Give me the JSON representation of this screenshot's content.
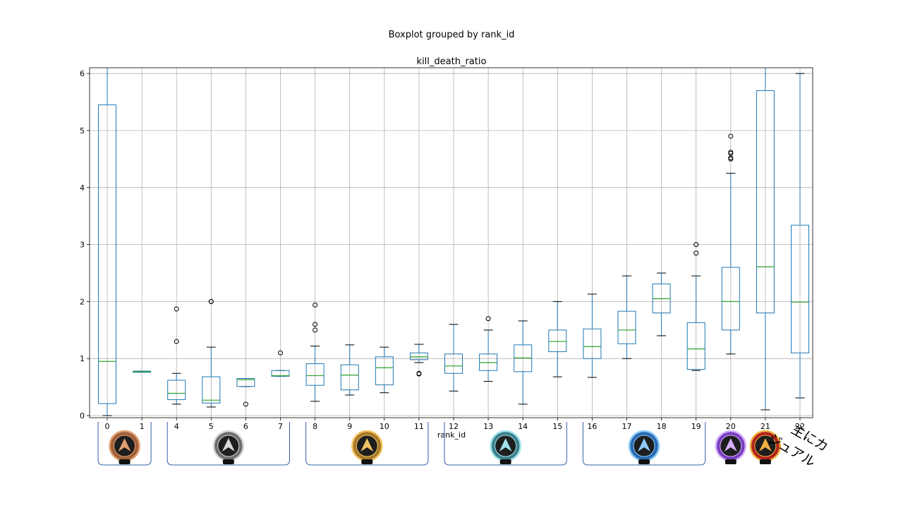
{
  "chart_data": {
    "type": "boxplot",
    "suptitle": "Boxplot grouped by rank_id",
    "title": "kill_death_ratio",
    "xlabel": "rank_id",
    "ylabel": "",
    "ylim": [
      0,
      6.1
    ],
    "yticks": [
      0,
      1,
      2,
      3,
      4,
      5,
      6
    ],
    "grid": true,
    "colors": {
      "box": "#1f77b4",
      "median": "#2ca02c",
      "grid": "#b0b0b0",
      "bracket": "#2f5fa8"
    },
    "categories": [
      "0",
      "1",
      "4",
      "5",
      "6",
      "7",
      "8",
      "9",
      "10",
      "11",
      "12",
      "13",
      "14",
      "15",
      "16",
      "17",
      "18",
      "19",
      "20",
      "21",
      "22"
    ],
    "boxes": [
      {
        "q1": 0.21,
        "median": 0.95,
        "q3": 5.45,
        "whislo": 0.0,
        "whishi": 6.1,
        "fliers": []
      },
      {
        "q1": 0.76,
        "median": 0.77,
        "q3": 0.78,
        "whislo": 0.76,
        "whishi": 0.78,
        "fliers": []
      },
      {
        "q1": 0.28,
        "median": 0.39,
        "q3": 0.62,
        "whislo": 0.2,
        "whishi": 0.74,
        "fliers": [
          1.3,
          1.87
        ]
      },
      {
        "q1": 0.22,
        "median": 0.27,
        "q3": 0.68,
        "whislo": 0.15,
        "whishi": 1.2,
        "fliers": [
          2.0,
          2.0
        ]
      },
      {
        "q1": 0.51,
        "median": 0.63,
        "q3": 0.65,
        "whislo": 0.51,
        "whishi": 0.65,
        "fliers": [
          0.2
        ]
      },
      {
        "q1": 0.69,
        "median": 0.7,
        "q3": 0.79,
        "whislo": 0.69,
        "whishi": 0.79,
        "fliers": [
          1.1
        ]
      },
      {
        "q1": 0.53,
        "median": 0.7,
        "q3": 0.91,
        "whislo": 0.25,
        "whishi": 1.22,
        "fliers": [
          1.5,
          1.6,
          1.94
        ]
      },
      {
        "q1": 0.45,
        "median": 0.71,
        "q3": 0.89,
        "whislo": 0.36,
        "whishi": 1.24,
        "fliers": []
      },
      {
        "q1": 0.54,
        "median": 0.84,
        "q3": 1.03,
        "whislo": 0.4,
        "whishi": 1.2,
        "fliers": []
      },
      {
        "q1": 0.98,
        "median": 1.03,
        "q3": 1.1,
        "whislo": 0.93,
        "whishi": 1.25,
        "fliers": [
          0.73,
          0.74
        ]
      },
      {
        "q1": 0.74,
        "median": 0.87,
        "q3": 1.08,
        "whislo": 0.43,
        "whishi": 1.6,
        "fliers": []
      },
      {
        "q1": 0.79,
        "median": 0.93,
        "q3": 1.08,
        "whislo": 0.6,
        "whishi": 1.5,
        "fliers": [
          1.7
        ]
      },
      {
        "q1": 0.77,
        "median": 1.01,
        "q3": 1.24,
        "whislo": 0.2,
        "whishi": 1.66,
        "fliers": []
      },
      {
        "q1": 1.12,
        "median": 1.3,
        "q3": 1.5,
        "whislo": 0.68,
        "whishi": 2.0,
        "fliers": []
      },
      {
        "q1": 1.0,
        "median": 1.21,
        "q3": 1.52,
        "whislo": 0.67,
        "whishi": 2.13,
        "fliers": []
      },
      {
        "q1": 1.26,
        "median": 1.5,
        "q3": 1.83,
        "whislo": 1.0,
        "whishi": 2.45,
        "fliers": []
      },
      {
        "q1": 1.8,
        "median": 2.05,
        "q3": 2.31,
        "whislo": 1.4,
        "whishi": 2.5,
        "fliers": []
      },
      {
        "q1": 0.81,
        "median": 1.17,
        "q3": 1.63,
        "whislo": 0.79,
        "whishi": 2.45,
        "fliers": [
          2.85,
          3.0
        ]
      },
      {
        "q1": 1.5,
        "median": 2.0,
        "q3": 2.6,
        "whislo": 1.08,
        "whishi": 4.25,
        "fliers": [
          4.5,
          4.52,
          4.6,
          4.62,
          4.9
        ]
      },
      {
        "q1": 1.8,
        "median": 2.61,
        "q3": 5.7,
        "whislo": 0.1,
        "whishi": 6.1,
        "fliers": []
      },
      {
        "q1": 1.1,
        "median": 1.99,
        "q3": 3.34,
        "whislo": 0.31,
        "whishi": 6.0,
        "fliers": []
      }
    ],
    "rank_groups": [
      {
        "name": "bronze-rank-emblem",
        "from": 0,
        "to": 1,
        "color": "#a0603a",
        "accent": "#e0a070"
      },
      {
        "name": "silver-rank-emblem",
        "from": 4,
        "to": 7,
        "color": "#6e6e6e",
        "accent": "#d8d8d8"
      },
      {
        "name": "gold-rank-emblem",
        "from": 8,
        "to": 11,
        "color": "#a67a2a",
        "accent": "#f2c463"
      },
      {
        "name": "platinum-rank-emblem",
        "from": 12,
        "to": 15,
        "color": "#3d7f8c",
        "accent": "#9fe2ea"
      },
      {
        "name": "diamond-rank-emblem",
        "from": 16,
        "to": 19,
        "color": "#2a6ab5",
        "accent": "#8ccaf5"
      }
    ],
    "single_emblems": [
      {
        "name": "master-rank-emblem",
        "at": 20,
        "color": "#7a3fc0",
        "accent": "#d6b0ff"
      },
      {
        "name": "predator-rank-emblem",
        "at": 21,
        "color": "#b0221c",
        "accent": "#f0b040"
      }
    ],
    "annotation": {
      "lines": [
        "主にカ",
        "ジュアル"
      ]
    }
  }
}
